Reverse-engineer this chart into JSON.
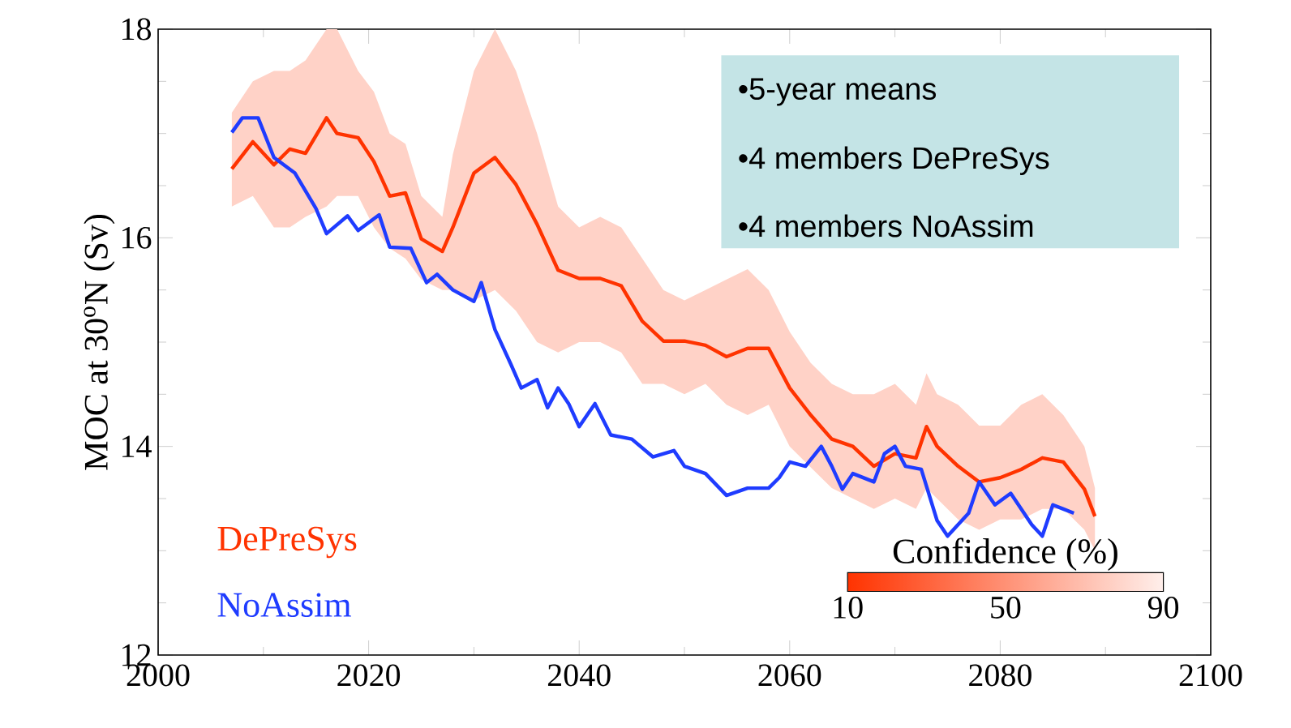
{
  "chart_data": {
    "type": "line",
    "ylabel": "MOC at 30$^{o}$N (Sv)",
    "xlim": [
      2000,
      2100
    ],
    "xticks": [
      2000,
      2020,
      2040,
      2060,
      2080,
      2100
    ],
    "ylim": [
      12,
      18
    ],
    "yticks": [
      12,
      14,
      16,
      18
    ],
    "grid": false,
    "legend": "bottom left",
    "marker": "none",
    "line_style": "solid",
    "annotations": [
      "•5-year means",
      "•4 members DePreSys",
      "•4 members NoAssim",
      "Confidence (%)",
      "10",
      "50",
      "90"
    ],
    "series": [
      {
        "name": "DePreSys",
        "color": "#ff3300",
        "x": [
          2007,
          2009,
          2011,
          2012.5,
          2014,
          2016,
          2017,
          2019,
          2020.5,
          2022,
          2023.5,
          2025,
          2027,
          2028,
          2030,
          2032,
          2034,
          2036,
          2038,
          2040,
          2042,
          2044,
          2046,
          2048,
          2050,
          2052,
          2054,
          2056,
          2058,
          2060,
          2062,
          2064,
          2066,
          2068,
          2070,
          2072,
          2073,
          2074,
          2076,
          2078,
          2080,
          2082,
          2084,
          2086,
          2088,
          2089
        ],
        "values": [
          16.66,
          16.92,
          16.7,
          16.85,
          16.81,
          17.15,
          17.0,
          16.96,
          16.73,
          16.4,
          16.43,
          15.99,
          15.87,
          16.1,
          16.62,
          16.77,
          16.51,
          16.13,
          15.69,
          15.61,
          15.61,
          15.54,
          15.2,
          15.01,
          15.01,
          14.97,
          14.86,
          14.94,
          14.94,
          14.56,
          14.3,
          14.07,
          14.0,
          13.81,
          13.93,
          13.89,
          14.19,
          14.0,
          13.81,
          13.66,
          13.7,
          13.78,
          13.89,
          13.85,
          13.59,
          13.33
        ],
        "upper": [
          17.2,
          17.5,
          17.6,
          17.6,
          17.7,
          18.0,
          18.0,
          17.6,
          17.4,
          17.0,
          16.9,
          16.4,
          16.2,
          16.8,
          17.6,
          18.0,
          17.6,
          17.0,
          16.3,
          16.1,
          16.2,
          16.1,
          15.8,
          15.5,
          15.4,
          15.5,
          15.6,
          15.7,
          15.5,
          15.1,
          14.8,
          14.6,
          14.5,
          14.5,
          14.6,
          14.4,
          14.7,
          14.5,
          14.4,
          14.2,
          14.2,
          14.4,
          14.5,
          14.3,
          14.0,
          13.6
        ],
        "lower": [
          16.3,
          16.4,
          16.1,
          16.1,
          16.2,
          16.3,
          16.4,
          16.4,
          16.1,
          15.9,
          15.8,
          15.6,
          15.5,
          15.5,
          15.4,
          15.5,
          15.3,
          15.0,
          14.9,
          15.0,
          15.0,
          14.9,
          14.6,
          14.6,
          14.5,
          14.6,
          14.4,
          14.3,
          14.4,
          14.0,
          13.8,
          13.6,
          13.5,
          13.4,
          13.5,
          13.4,
          13.6,
          13.5,
          13.3,
          13.2,
          13.3,
          13.3,
          13.4,
          13.4,
          13.2,
          13.0
        ]
      },
      {
        "name": "NoAssim",
        "color": "#1f3cff",
        "x": [
          2007,
          2008,
          2009.5,
          2011,
          2013,
          2015,
          2016,
          2018,
          2019,
          2021,
          2022,
          2024,
          2025.5,
          2026.5,
          2028,
          2030,
          2030.7,
          2032,
          2033.5,
          2034.5,
          2036,
          2037,
          2038,
          2039,
          2040,
          2041.5,
          2043,
          2045,
          2047,
          2049,
          2050,
          2052,
          2054,
          2056,
          2058,
          2059,
          2060,
          2061.5,
          2063,
          2064,
          2065,
          2066,
          2068,
          2069,
          2070,
          2071,
          2072.5,
          2074,
          2075,
          2077,
          2078,
          2079.5,
          2081,
          2083,
          2084,
          2085,
          2086,
          2087
        ],
        "values": [
          17.01,
          17.15,
          17.15,
          16.77,
          16.62,
          16.28,
          16.04,
          16.21,
          16.07,
          16.22,
          15.91,
          15.9,
          15.57,
          15.65,
          15.5,
          15.39,
          15.57,
          15.12,
          14.79,
          14.56,
          14.64,
          14.37,
          14.56,
          14.41,
          14.19,
          14.41,
          14.11,
          14.07,
          13.9,
          13.96,
          13.81,
          13.74,
          13.53,
          13.6,
          13.6,
          13.7,
          13.85,
          13.81,
          14.0,
          13.81,
          13.59,
          13.74,
          13.66,
          13.93,
          14.0,
          13.81,
          13.78,
          13.29,
          13.14,
          13.36,
          13.66,
          13.44,
          13.55,
          13.25,
          13.14,
          13.44,
          13.4,
          13.36
        ]
      }
    ]
  }
}
